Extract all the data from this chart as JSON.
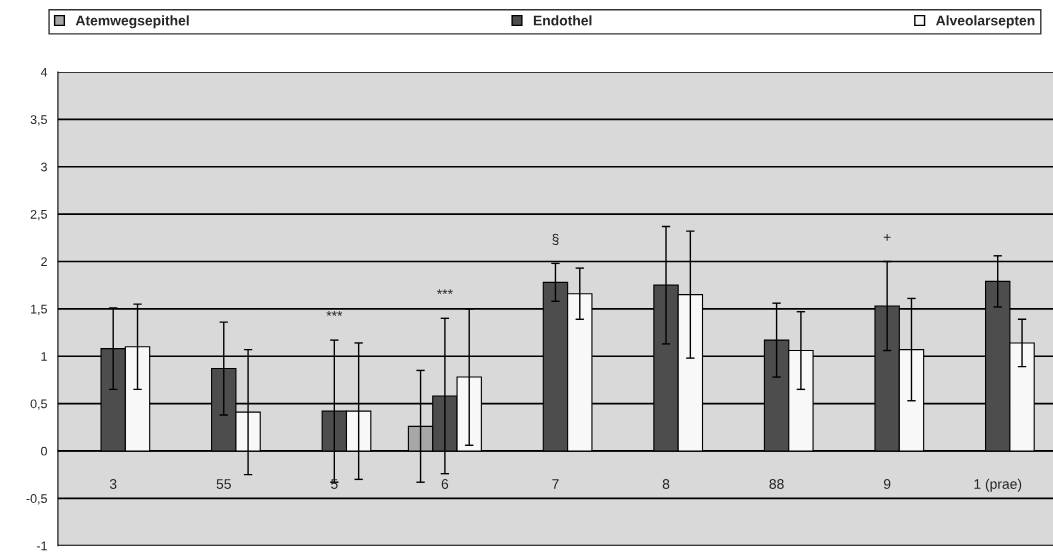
{
  "chart_data": {
    "type": "bar",
    "categories": [
      "3",
      "55",
      "5",
      "6",
      "7",
      "8",
      "88",
      "9",
      "1 (prae)"
    ],
    "series": [
      {
        "name": "Atemwegsepithel",
        "color": "#a6a6a6",
        "values": [
          null,
          null,
          null,
          0.26,
          null,
          null,
          null,
          null,
          null
        ],
        "errors": [
          null,
          null,
          null,
          0.59,
          null,
          null,
          null,
          null,
          null
        ]
      },
      {
        "name": "Endothel",
        "color": "#4d4d4d",
        "values": [
          1.08,
          0.87,
          0.42,
          0.58,
          1.78,
          1.75,
          1.17,
          1.53,
          1.79
        ],
        "errors": [
          0.43,
          0.49,
          0.75,
          0.82,
          0.2,
          0.62,
          0.39,
          0.47,
          0.27
        ]
      },
      {
        "name": "Alveolarsepten",
        "color": "#f8f8f8",
        "values": [
          1.1,
          0.41,
          0.42,
          0.78,
          1.66,
          1.65,
          1.06,
          1.07,
          1.14
        ],
        "errors": [
          0.45,
          0.66,
          0.72,
          0.72,
          0.27,
          0.67,
          0.41,
          0.54,
          0.25
        ]
      }
    ],
    "ylim": [
      -1,
      4
    ],
    "yticks": [
      -1,
      {
        "value": -0.5,
        "label": "-0,5"
      },
      0,
      {
        "value": 0.5,
        "label": "0,5"
      },
      1,
      {
        "value": 1.5,
        "label": "1,5"
      },
      2,
      {
        "value": 2.5,
        "label": "2,5"
      },
      3,
      {
        "value": 3.5,
        "label": "3,5"
      },
      4
    ],
    "grid": "y",
    "legend": "top",
    "annotations": [
      {
        "text": "***",
        "x": "5",
        "y": 1.17
      },
      {
        "text": "***",
        "x": "6",
        "y": 1.4
      },
      {
        "text": "§",
        "x": "7",
        "y": 1.98
      },
      {
        "text": "+",
        "x": "9",
        "y": 2.0
      }
    ]
  }
}
